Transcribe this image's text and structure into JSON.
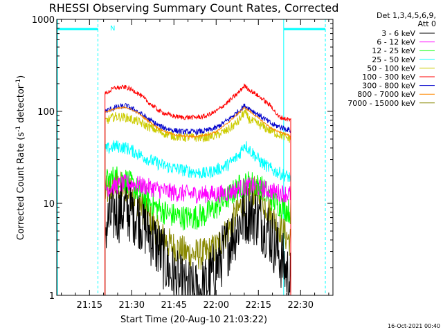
{
  "chart_data": {
    "type": "line",
    "title": "RHESSI Observing Summary Count Rates, Corrected",
    "xlabel": "Start Time (20-Aug-10 21:03:22)",
    "ylabel_main": "Corrected Count Rate (s",
    "ylabel_sup1": "-1",
    "ylabel_mid": " detector",
    "ylabel_sup2": "-1",
    "ylabel_end": ")",
    "yscale": "log",
    "ylim": [
      1,
      1000
    ],
    "y_ticks": [
      {
        "value": 1,
        "label": "1"
      },
      {
        "value": 10,
        "label": "10"
      },
      {
        "value": 100,
        "label": "100"
      },
      {
        "value": 1000,
        "label": "1000"
      }
    ],
    "xlim_minutes": [
      3.37,
      101.5
    ],
    "x_ticks": [
      {
        "minute": 15,
        "label": "21:15"
      },
      {
        "minute": 30,
        "label": "21:30"
      },
      {
        "minute": 45,
        "label": "21:45"
      },
      {
        "minute": 60,
        "label": "22:00"
      },
      {
        "minute": 75,
        "label": "22:15"
      },
      {
        "minute": 90,
        "label": "22:30"
      }
    ],
    "detectors": "Det 1,3,4,5,6,9,",
    "attenuator": "Att 0",
    "night_label": "N",
    "data_start_minute": 20.5,
    "data_end_minute": 86.5,
    "series": [
      {
        "name": "3 - 6 keV",
        "color": "#000000",
        "noise": 0.35,
        "points": [
          [
            20.5,
            5.5
          ],
          [
            24,
            8
          ],
          [
            28,
            8.5
          ],
          [
            32,
            7.5
          ],
          [
            36,
            5
          ],
          [
            40,
            3
          ],
          [
            44,
            1.7
          ],
          [
            48,
            1.2
          ],
          [
            52,
            1.05
          ],
          [
            56,
            1.2
          ],
          [
            60,
            2
          ],
          [
            64,
            3.5
          ],
          [
            68,
            6
          ],
          [
            71,
            8
          ],
          [
            74,
            7.5
          ],
          [
            78,
            5.5
          ],
          [
            82,
            3
          ],
          [
            86.5,
            1.4
          ]
        ]
      },
      {
        "name": "6 - 12 keV",
        "color": "#ff00ff",
        "noise": 0.1,
        "points": [
          [
            20.5,
            14.5
          ],
          [
            28,
            16.5
          ],
          [
            32,
            16
          ],
          [
            36,
            15
          ],
          [
            40,
            14
          ],
          [
            44,
            13.2
          ],
          [
            48,
            12.8
          ],
          [
            52,
            12.6
          ],
          [
            56,
            12.6
          ],
          [
            60,
            12.6
          ],
          [
            64,
            13
          ],
          [
            68,
            14.5
          ],
          [
            72,
            15.5
          ],
          [
            76,
            14.5
          ],
          [
            80,
            13.5
          ],
          [
            86.5,
            12.5
          ]
        ]
      },
      {
        "name": "12 - 25 keV",
        "color": "#00ff00",
        "noise": 0.14,
        "points": [
          [
            20.5,
            17
          ],
          [
            24,
            19.5
          ],
          [
            28,
            18
          ],
          [
            32,
            14
          ],
          [
            36,
            10.5
          ],
          [
            40,
            8.5
          ],
          [
            44,
            7.5
          ],
          [
            48,
            7
          ],
          [
            52,
            7
          ],
          [
            56,
            7.5
          ],
          [
            60,
            9
          ],
          [
            64,
            11.5
          ],
          [
            68,
            15
          ],
          [
            72,
            17
          ],
          [
            76,
            15
          ],
          [
            80,
            11
          ],
          [
            86.5,
            8
          ]
        ]
      },
      {
        "name": "25 - 50 keV",
        "color": "#00ffff",
        "noise": 0.07,
        "points": [
          [
            20.5,
            38
          ],
          [
            24,
            42
          ],
          [
            28,
            40
          ],
          [
            32,
            35
          ],
          [
            36,
            30
          ],
          [
            40,
            26.5
          ],
          [
            44,
            24.5
          ],
          [
            48,
            23
          ],
          [
            52,
            22
          ],
          [
            56,
            21
          ],
          [
            60,
            23
          ],
          [
            64,
            26
          ],
          [
            68,
            33
          ],
          [
            70,
            44
          ],
          [
            72,
            38
          ],
          [
            76,
            28
          ],
          [
            80,
            23
          ],
          [
            86.5,
            19
          ]
        ]
      },
      {
        "name": "50 - 100 keV",
        "color": "#cccc00",
        "noise": 0.05,
        "points": [
          [
            20.5,
            78
          ],
          [
            24,
            88
          ],
          [
            28,
            86
          ],
          [
            32,
            78
          ],
          [
            36,
            68
          ],
          [
            40,
            60
          ],
          [
            44,
            55
          ],
          [
            48,
            52
          ],
          [
            52,
            52
          ],
          [
            56,
            52
          ],
          [
            60,
            55
          ],
          [
            64,
            62
          ],
          [
            68,
            78
          ],
          [
            70,
            98
          ],
          [
            72,
            80
          ],
          [
            76,
            70
          ],
          [
            80,
            60
          ],
          [
            86.5,
            50
          ]
        ]
      },
      {
        "name": "100 - 300 keV",
        "color": "#ff0000",
        "noise": 0.025,
        "points": [
          [
            20.5,
            155
          ],
          [
            24,
            180
          ],
          [
            28,
            183
          ],
          [
            32,
            160
          ],
          [
            36,
            125
          ],
          [
            40,
            100
          ],
          [
            44,
            90
          ],
          [
            48,
            86
          ],
          [
            52,
            86
          ],
          [
            56,
            88
          ],
          [
            60,
            100
          ],
          [
            64,
            125
          ],
          [
            68,
            160
          ],
          [
            70,
            190
          ],
          [
            72,
            170
          ],
          [
            76,
            140
          ],
          [
            80,
            110
          ],
          [
            82,
            88
          ],
          [
            86.5,
            80
          ]
        ]
      },
      {
        "name": "300 - 800 keV",
        "color": "#0000cc",
        "noise": 0.03,
        "points": [
          [
            20.5,
            100
          ],
          [
            24,
            110
          ],
          [
            28,
            115
          ],
          [
            32,
            100
          ],
          [
            36,
            82
          ],
          [
            40,
            69
          ],
          [
            44,
            63
          ],
          [
            48,
            60
          ],
          [
            52,
            60
          ],
          [
            56,
            61
          ],
          [
            60,
            66
          ],
          [
            64,
            80
          ],
          [
            68,
            100
          ],
          [
            70,
            115
          ],
          [
            72,
            106
          ],
          [
            76,
            88
          ],
          [
            80,
            72
          ],
          [
            86.5,
            62
          ]
        ]
      },
      {
        "name": "800 - 7000 keV",
        "color": "#ff8800",
        "noise": 0.01,
        "points": [
          [
            20.5,
            98
          ],
          [
            24,
            106
          ],
          [
            28,
            111
          ],
          [
            32,
            97
          ],
          [
            36,
            78
          ],
          [
            40,
            64
          ],
          [
            44,
            57
          ],
          [
            48,
            54
          ],
          [
            52,
            53
          ],
          [
            56,
            55
          ],
          [
            60,
            60
          ],
          [
            64,
            74
          ],
          [
            68,
            96
          ],
          [
            70,
            110
          ],
          [
            72,
            100
          ],
          [
            76,
            80
          ],
          [
            80,
            64
          ],
          [
            86.5,
            54
          ]
        ]
      },
      {
        "name": "7000 - 15000 keV",
        "color": "#888800",
        "noise": 0.18,
        "points": [
          [
            20.5,
            13
          ],
          [
            24,
            15.5
          ],
          [
            28,
            14.5
          ],
          [
            32,
            11
          ],
          [
            36,
            7
          ],
          [
            40,
            4.5
          ],
          [
            44,
            3.5
          ],
          [
            48,
            3
          ],
          [
            52,
            2.8
          ],
          [
            56,
            2.8
          ],
          [
            60,
            3.3
          ],
          [
            64,
            5
          ],
          [
            68,
            8.5
          ],
          [
            72,
            14
          ],
          [
            76,
            12
          ],
          [
            80,
            7
          ],
          [
            86.5,
            3.8
          ]
        ]
      }
    ]
  },
  "timestamp": "16-Oct-2021 00:40"
}
